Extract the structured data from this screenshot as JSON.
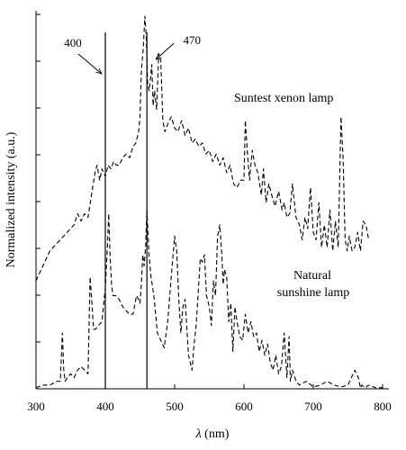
{
  "chart_data": {
    "type": "line",
    "xlabel_symbol": "λ",
    "xlabel_unit": " (nm)",
    "ylabel": "Normalized intensity (a.u.)",
    "xlim": [
      300,
      800
    ],
    "x_ticks": [
      300,
      400,
      500,
      600,
      700,
      800
    ],
    "y_tick_count": 8,
    "y_axis_tick_labels": "none",
    "grid": false,
    "legend": "none (series labelled inline)",
    "line_color": "#000000",
    "annotations": [
      {
        "label": "400",
        "x": 400
      },
      {
        "label": "470",
        "x": 460
      }
    ],
    "series": [
      {
        "name": "Suntest xenon lamp",
        "style": "dashed",
        "x": [
          300,
          310,
          320,
          330,
          340,
          350,
          355,
          360,
          365,
          370,
          375,
          380,
          385,
          388,
          392,
          395,
          400,
          404,
          408,
          412,
          416,
          420,
          425,
          430,
          435,
          440,
          444,
          448,
          450,
          452,
          455,
          457,
          459,
          461,
          463,
          465,
          467,
          469,
          471,
          474,
          477,
          480,
          483,
          486,
          490,
          495,
          500,
          505,
          510,
          515,
          520,
          525,
          530,
          535,
          540,
          545,
          550,
          555,
          560,
          565,
          570,
          575,
          580,
          585,
          590,
          595,
          600,
          602,
          605,
          608,
          612,
          616,
          620,
          625,
          628,
          632,
          636,
          640,
          645,
          650,
          655,
          658,
          662,
          666,
          670,
          675,
          680,
          684,
          688,
          692,
          696,
          700,
          704,
          708,
          712,
          716,
          720,
          724,
          728,
          732,
          736,
          740,
          743,
          746,
          749,
          752,
          756,
          760,
          764,
          768,
          772,
          776,
          780
        ],
        "y": [
          0.29,
          0.33,
          0.37,
          0.39,
          0.41,
          0.43,
          0.44,
          0.47,
          0.45,
          0.47,
          0.46,
          0.52,
          0.58,
          0.6,
          0.56,
          0.59,
          0.57,
          0.6,
          0.59,
          0.61,
          0.6,
          0.6,
          0.62,
          0.63,
          0.62,
          0.65,
          0.66,
          0.69,
          0.73,
          0.85,
          0.92,
          1.0,
          0.95,
          0.82,
          0.8,
          0.83,
          0.87,
          0.76,
          0.8,
          0.75,
          0.9,
          0.88,
          0.72,
          0.69,
          0.71,
          0.73,
          0.7,
          0.69,
          0.72,
          0.68,
          0.7,
          0.66,
          0.67,
          0.65,
          0.66,
          0.63,
          0.64,
          0.61,
          0.63,
          0.6,
          0.62,
          0.58,
          0.6,
          0.55,
          0.54,
          0.56,
          0.56,
          0.72,
          0.63,
          0.56,
          0.64,
          0.6,
          0.58,
          0.52,
          0.59,
          0.5,
          0.55,
          0.52,
          0.49,
          0.53,
          0.48,
          0.5,
          0.46,
          0.47,
          0.55,
          0.46,
          0.44,
          0.4,
          0.46,
          0.43,
          0.54,
          0.42,
          0.4,
          0.5,
          0.38,
          0.44,
          0.38,
          0.48,
          0.37,
          0.45,
          0.38,
          0.73,
          0.62,
          0.4,
          0.37,
          0.41,
          0.37,
          0.38,
          0.42,
          0.37,
          0.45,
          0.44,
          0.4
        ]
      },
      {
        "name": "Natural sunshine lamp",
        "style": "dashed",
        "x": [
          300,
          310,
          320,
          330,
          335,
          338,
          340,
          342,
          345,
          350,
          355,
          360,
          365,
          370,
          375,
          378,
          380,
          383,
          386,
          390,
          395,
          400,
          403,
          405,
          407,
          409,
          411,
          415,
          420,
          425,
          430,
          435,
          440,
          445,
          448,
          450,
          452,
          454,
          456,
          458,
          460,
          463,
          466,
          470,
          475,
          480,
          485,
          490,
          495,
          500,
          503,
          506,
          509,
          512,
          515,
          520,
          525,
          528,
          531,
          534,
          537,
          540,
          543,
          546,
          550,
          553,
          556,
          559,
          562,
          565,
          568,
          570,
          572,
          575,
          578,
          581,
          584,
          587,
          590,
          594,
          598,
          602,
          606,
          610,
          614,
          618,
          622,
          626,
          630,
          634,
          638,
          642,
          646,
          650,
          654,
          658,
          662,
          665,
          667,
          670,
          672,
          675,
          680,
          690,
          700,
          710,
          720,
          730,
          740,
          750,
          760,
          765,
          768,
          770,
          775,
          780,
          790,
          800
        ],
        "y": [
          0.003,
          0.01,
          0.01,
          0.02,
          0.02,
          0.15,
          0.05,
          0.02,
          0.03,
          0.04,
          0.03,
          0.05,
          0.06,
          0.05,
          0.04,
          0.3,
          0.25,
          0.16,
          0.16,
          0.17,
          0.18,
          0.27,
          0.38,
          0.47,
          0.35,
          0.28,
          0.25,
          0.25,
          0.24,
          0.22,
          0.21,
          0.2,
          0.2,
          0.25,
          0.24,
          0.23,
          0.28,
          0.36,
          0.33,
          0.38,
          0.48,
          0.36,
          0.3,
          0.25,
          0.15,
          0.13,
          0.11,
          0.18,
          0.3,
          0.41,
          0.37,
          0.24,
          0.15,
          0.22,
          0.24,
          0.09,
          0.05,
          0.12,
          0.17,
          0.26,
          0.35,
          0.34,
          0.36,
          0.25,
          0.22,
          0.17,
          0.29,
          0.25,
          0.41,
          0.44,
          0.36,
          0.28,
          0.32,
          0.3,
          0.18,
          0.23,
          0.1,
          0.22,
          0.18,
          0.14,
          0.13,
          0.2,
          0.15,
          0.18,
          0.14,
          0.15,
          0.1,
          0.13,
          0.09,
          0.12,
          0.07,
          0.05,
          0.09,
          0.04,
          0.06,
          0.15,
          0.03,
          0.14,
          0.02,
          0.05,
          0.04,
          0.02,
          0.01,
          0.02,
          0.005,
          0.01,
          0.02,
          0.01,
          0.005,
          0.01,
          0.05,
          0.03,
          0.002,
          0.01,
          0.003,
          0.01,
          0.003,
          0.003
        ]
      }
    ]
  }
}
